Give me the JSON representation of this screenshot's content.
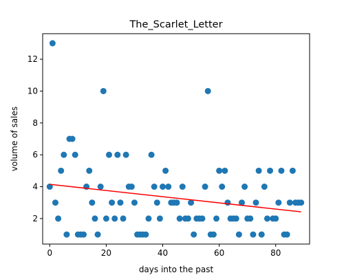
{
  "chart_data": {
    "type": "scatter",
    "title": "The_Scarlet_Letter",
    "xlabel": "days into the past",
    "ylabel": "volume of sales",
    "xlim": [
      -2.5,
      92
    ],
    "ylim": [
      0.4,
      13.6
    ],
    "xticks": [
      0,
      20,
      40,
      60,
      80
    ],
    "yticks": [
      2,
      4,
      6,
      8,
      10,
      12
    ],
    "grid": false,
    "point_color": "#1f77b4",
    "trend_color": "#ff0000",
    "x": [
      0,
      1,
      2,
      3,
      4,
      5,
      6,
      7,
      8,
      9,
      10,
      11,
      12,
      13,
      14,
      15,
      16,
      17,
      18,
      19,
      20,
      21,
      22,
      23,
      24,
      25,
      26,
      27,
      28,
      29,
      30,
      31,
      32,
      33,
      34,
      35,
      36,
      37,
      38,
      39,
      40,
      41,
      42,
      43,
      44,
      45,
      46,
      47,
      48,
      49,
      50,
      51,
      52,
      53,
      54,
      55,
      56,
      57,
      58,
      59,
      60,
      61,
      62,
      63,
      64,
      65,
      66,
      67,
      68,
      69,
      70,
      71,
      72,
      73,
      74,
      75,
      76,
      77,
      78,
      79,
      80,
      81,
      82,
      83,
      84,
      85,
      86,
      87,
      88,
      89
    ],
    "y": [
      4,
      13,
      3,
      2,
      5,
      6,
      1,
      7,
      7,
      6,
      1,
      1,
      1,
      4,
      5,
      3,
      2,
      1,
      4,
      10,
      2,
      6,
      3,
      2,
      6,
      3,
      2,
      6,
      4,
      4,
      3,
      1,
      1,
      1,
      1,
      2,
      6,
      4,
      3,
      2,
      4,
      5,
      4,
      3,
      3,
      3,
      2,
      4,
      2,
      2,
      3,
      1,
      2,
      2,
      2,
      4,
      10,
      1,
      1,
      2,
      5,
      4,
      5,
      3,
      2,
      2,
      2,
      1,
      3,
      4,
      2,
      2,
      1,
      3,
      5,
      1,
      4,
      2,
      5,
      2,
      2,
      3,
      5,
      1,
      1,
      3,
      5,
      3,
      3,
      3
    ],
    "trend": {
      "x": [
        0,
        89
      ],
      "y": [
        4.15,
        2.42
      ]
    }
  }
}
